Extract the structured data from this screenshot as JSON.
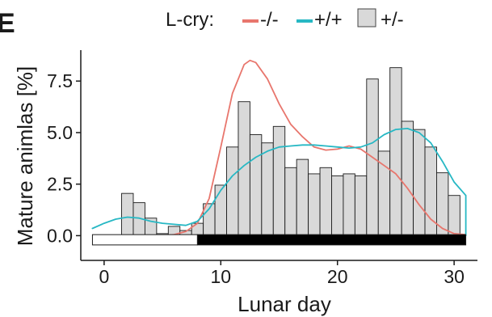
{
  "panel_label": "E",
  "chart_data": {
    "type": "bar",
    "xlabel": "Lunar day",
    "ylabel": "Mature animlas [%]",
    "xlim": [
      -2,
      32
    ],
    "ylim": [
      -1.2,
      9.0
    ],
    "x_ticks": [
      0,
      10,
      20,
      30
    ],
    "y_ticks": [
      0.0,
      2.5,
      5.0,
      7.5
    ],
    "x_tick_labels": [
      "0",
      "10",
      "20",
      "30"
    ],
    "y_tick_labels": [
      "0.0",
      "2.5",
      "5.0",
      "7.5"
    ],
    "grid": false,
    "legend": {
      "position": "top",
      "title": "L-cry:",
      "entries": [
        {
          "label": "-/-",
          "kind": "line",
          "color": "#e8766d"
        },
        {
          "label": "+/+",
          "kind": "line",
          "color": "#27b8c4"
        },
        {
          "label": "+/-",
          "kind": "bar",
          "color": "#d9d9d9"
        }
      ]
    },
    "bars": {
      "series_label": "+/-",
      "fill": "#d9d9d9",
      "stroke": "#1a1a1a",
      "x": [
        1,
        2,
        3,
        4,
        5,
        6,
        7,
        8,
        9,
        10,
        11,
        12,
        13,
        14,
        15,
        16,
        17,
        18,
        19,
        20,
        21,
        22,
        23,
        24,
        25,
        26,
        27,
        28,
        29,
        30
      ],
      "values": [
        0,
        2.05,
        1.6,
        0.85,
        0.1,
        0.45,
        0.25,
        0.6,
        1.55,
        2.45,
        4.3,
        6.5,
        4.9,
        4.5,
        5.3,
        3.3,
        3.7,
        3.0,
        3.3,
        2.9,
        3.0,
        2.9,
        7.6,
        4.1,
        8.15,
        5.55,
        5.15,
        4.3,
        3.05,
        1.95
      ]
    },
    "lines": [
      {
        "label": "-/-",
        "color": "#e8766d",
        "x": [
          5,
          6,
          7,
          8,
          9,
          10,
          11,
          12,
          12.5,
          13,
          14,
          15,
          16,
          17,
          18,
          19,
          20,
          21,
          22,
          23,
          24,
          25,
          26,
          27,
          28,
          29,
          30,
          31
        ],
        "y": [
          0,
          0.05,
          0.2,
          0.6,
          1.8,
          4.3,
          6.9,
          8.3,
          8.5,
          8.4,
          7.6,
          6.4,
          5.4,
          4.8,
          4.3,
          4.15,
          4.2,
          4.35,
          4.2,
          3.8,
          3.4,
          3.0,
          2.3,
          1.5,
          0.8,
          0.35,
          0.1,
          0.05
        ]
      },
      {
        "label": "+/+",
        "color": "#27b8c4",
        "x": [
          -1,
          0,
          1,
          2,
          3,
          4,
          5,
          6,
          7,
          8,
          9,
          10,
          11,
          12,
          13,
          14,
          15,
          16,
          17,
          18,
          19,
          20,
          21,
          22,
          23,
          24,
          25,
          26,
          27,
          28,
          29,
          30,
          31,
          31
        ],
        "y": [
          0.35,
          0.6,
          0.8,
          0.9,
          0.85,
          0.7,
          0.6,
          0.55,
          0.5,
          0.7,
          1.3,
          2.2,
          2.9,
          3.4,
          3.8,
          4.1,
          4.3,
          4.35,
          4.4,
          4.4,
          4.35,
          4.3,
          4.25,
          4.3,
          4.5,
          4.9,
          5.15,
          5.2,
          5.0,
          4.5,
          3.6,
          2.6,
          1.95,
          0
        ]
      }
    ],
    "light_bar": {
      "dark_fill": "#000000",
      "light_fill": "#ffffff",
      "light_range": [
        -1,
        8
      ],
      "dark_range": [
        8,
        31
      ],
      "y_range": [
        -0.45,
        0.05
      ]
    }
  }
}
